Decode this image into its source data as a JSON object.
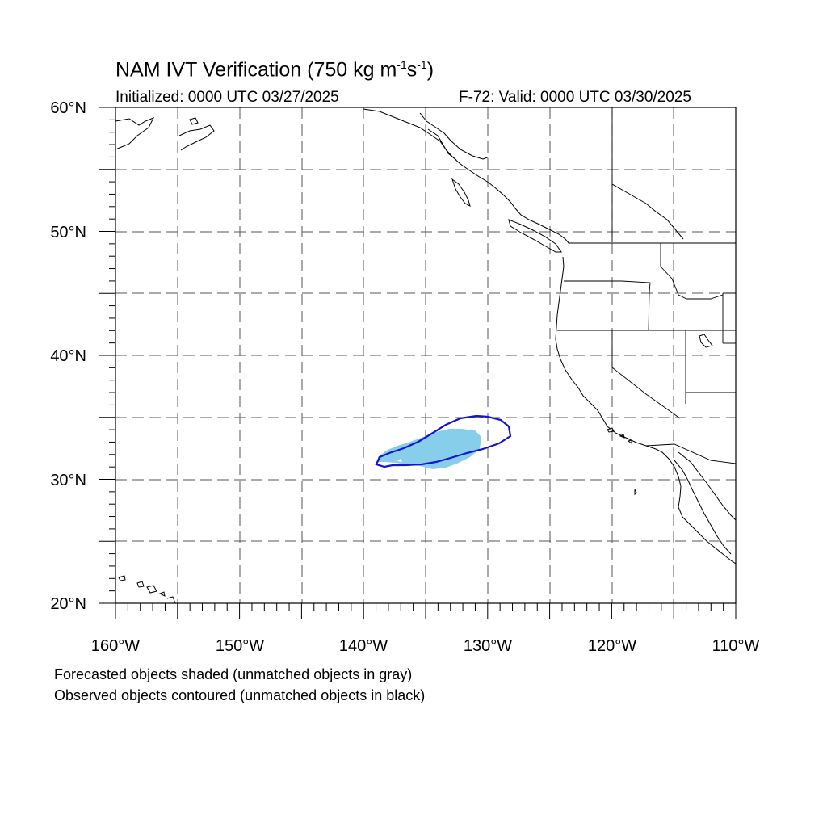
{
  "title": {
    "main": "NAM IVT Verification (750 kg m",
    "sup1": "-1",
    "s": "s",
    "sup2": "-1",
    "close": ")"
  },
  "initialized": "Initialized: 0000 UTC 03/27/2025",
  "valid": "F-72: Valid: 0000 UTC 03/30/2025",
  "lat_labels": [
    "60°N",
    "50°N",
    "40°N",
    "30°N",
    "20°N"
  ],
  "lon_labels": [
    "160°W",
    "150°W",
    "140°W",
    "130°W",
    "120°W",
    "110°W"
  ],
  "map_extent": {
    "lon_min": -160,
    "lon_max": -110,
    "lat_min": 20,
    "lat_max": 60
  },
  "legend_notes": [
    "Forecasted objects shaded (unmatched objects in gray)",
    "Observed objects contoured (unmatched objects in black)"
  ],
  "colors": {
    "forecast_fill": "#87ceeb",
    "observed_contour": "#1414d2",
    "coastline": "#000000",
    "grid": "#555555"
  }
}
